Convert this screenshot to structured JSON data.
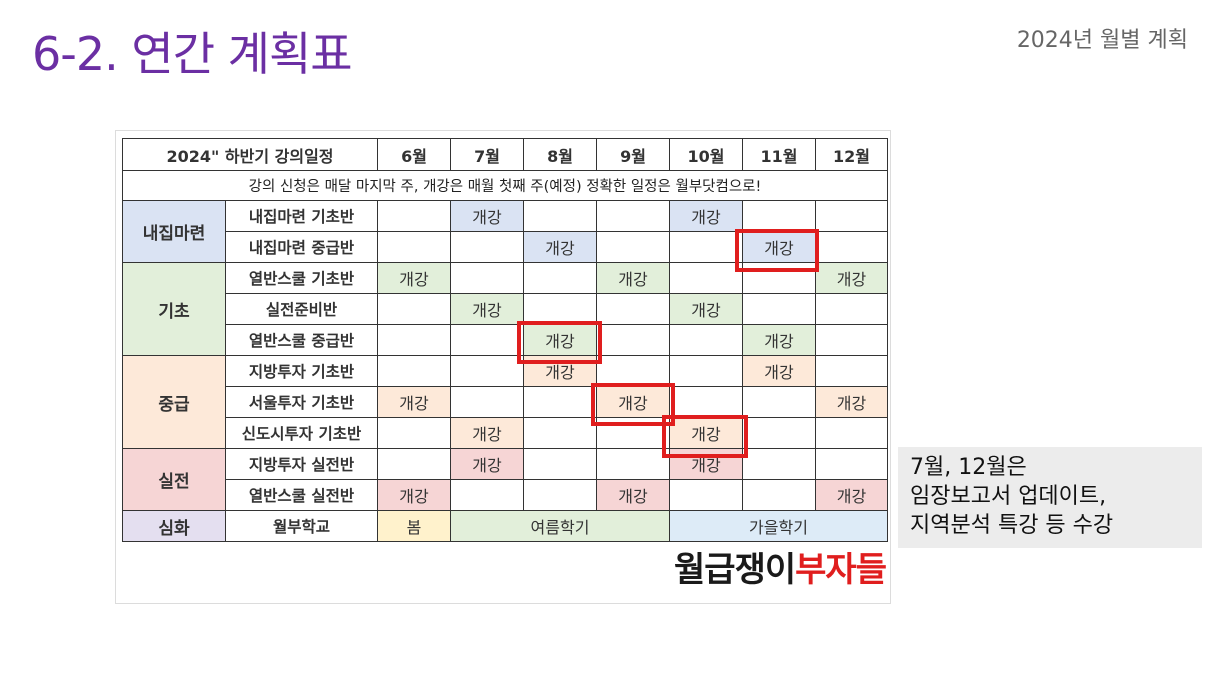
{
  "header": {
    "title": "6-2. 연간 계획표",
    "subtitle": "2024년 월별 계획"
  },
  "schedule": {
    "corner_label": "2024\" 하반기 강의일정",
    "months": [
      "6월",
      "7월",
      "8월",
      "9월",
      "10월",
      "11월",
      "12월"
    ],
    "notice": "강의 신청은 매달 마지막 주, 개강은 매월 첫째 주(예정) 정확한 일정은 월부닷컴으로!",
    "open_label": "개강",
    "categories": [
      {
        "name": "내집마련",
        "color": "#dae3f3"
      },
      {
        "name": "기초",
        "color": "#e2efda"
      },
      {
        "name": "중급",
        "color": "#fde9d9"
      },
      {
        "name": "실전",
        "color": "#f6d5d5"
      },
      {
        "name": "심화",
        "color": "#e4dff0"
      }
    ],
    "courses": [
      {
        "name": "내집마련 기초반",
        "open_months": [
          "7월",
          "10월"
        ]
      },
      {
        "name": "내집마련 중급반",
        "open_months": [
          "8월",
          "11월"
        ]
      },
      {
        "name": "열반스쿨 기초반",
        "open_months": [
          "6월",
          "9월",
          "12월"
        ]
      },
      {
        "name": "실전준비반",
        "open_months": [
          "7월",
          "10월"
        ]
      },
      {
        "name": "열반스쿨 중급반",
        "open_months": [
          "8월",
          "11월"
        ]
      },
      {
        "name": "지방투자 기초반",
        "open_months": [
          "8월",
          "11월"
        ]
      },
      {
        "name": "서울투자 기초반",
        "open_months": [
          "6월",
          "9월",
          "12월"
        ]
      },
      {
        "name": "신도시투자 기초반",
        "open_months": [
          "7월",
          "10월"
        ]
      },
      {
        "name": "지방투자 실전반",
        "open_months": [
          "7월",
          "10월"
        ]
      },
      {
        "name": "열반스쿨 실전반",
        "open_months": [
          "6월",
          "9월",
          "12월"
        ]
      },
      {
        "name": "월부학교",
        "terms": [
          {
            "label": "봄",
            "months": [
              "6월"
            ],
            "color": "#fff2cc"
          },
          {
            "label": "여름학기",
            "months": [
              "7월",
              "8월",
              "9월"
            ],
            "color": "#e2efda"
          },
          {
            "label": "가을학기",
            "months": [
              "10월",
              "11월",
              "12월"
            ],
            "color": "#ddebf7"
          }
        ]
      }
    ],
    "highlighted": [
      "내집마련 중급반 11월",
      "열반스쿨 중급반 8월",
      "서울투자 기초반 9월",
      "신도시투자 기초반 10월"
    ],
    "highlight_color": "#e01e1e"
  },
  "brand": {
    "part1": "월급쟁이",
    "part2": "부자들",
    "color_dark": "#1a1a1a",
    "color_red": "#e01e1e"
  },
  "note": {
    "lines": [
      "7월, 12월은",
      "임장보고서 업데이트,",
      "지역분석 특강 등 수강"
    ]
  }
}
